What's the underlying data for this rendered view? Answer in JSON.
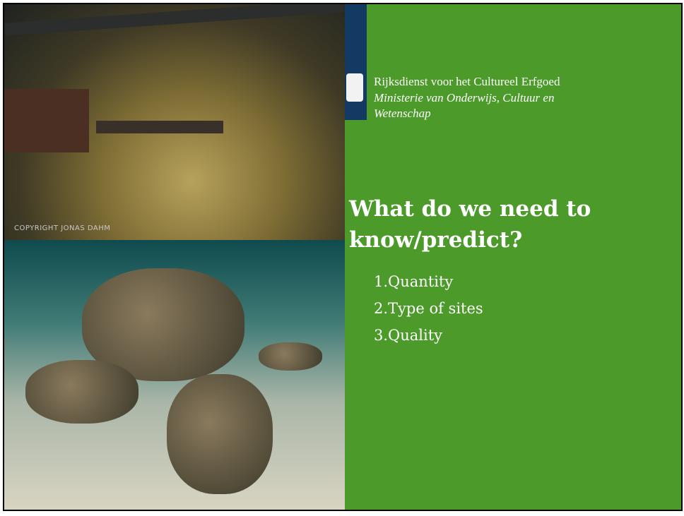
{
  "photo_credit": "COPYRIGHT JONAS DAHM",
  "agency": {
    "name": "Rijksdienst voor het Cultureel Erfgoed",
    "ministry": "Ministerie van Onderwijs, Cultuur en Wetenschap"
  },
  "heading": "What do we need to know/predict?",
  "list": [
    "1.Quantity",
    "2.Type of sites",
    "3.Quality"
  ]
}
